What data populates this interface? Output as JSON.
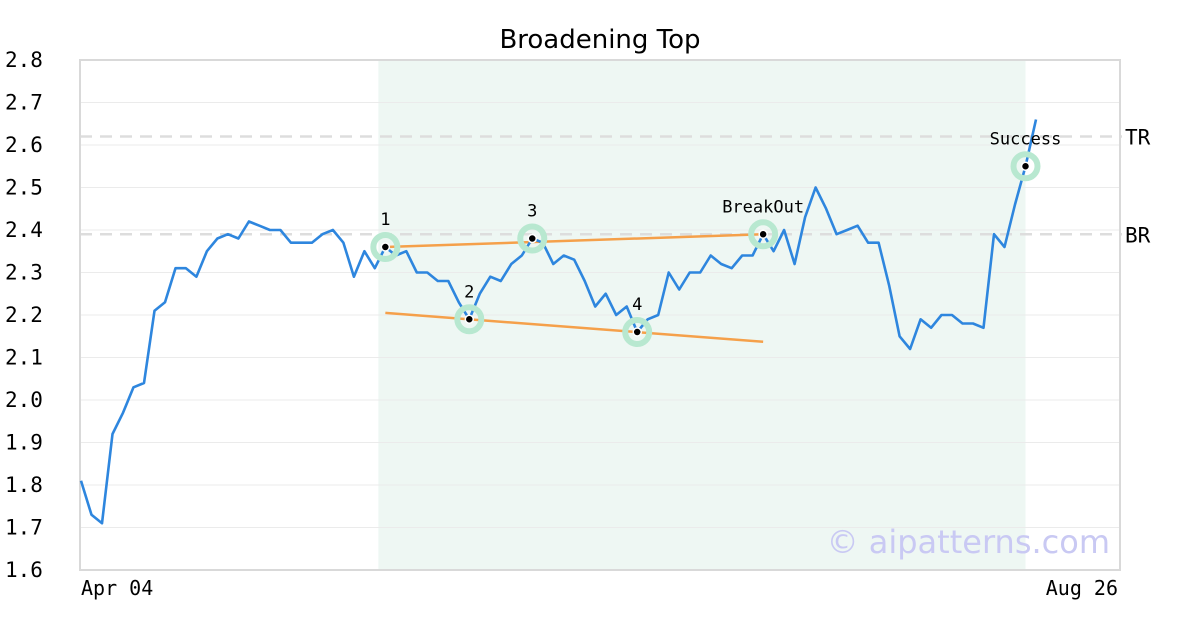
{
  "chart_data": {
    "type": "line",
    "title": "Broadening Top",
    "ylim": [
      1.6,
      2.8
    ],
    "yticks": [
      "1.6",
      "1.7",
      "1.8",
      "1.9",
      "2.0",
      "2.1",
      "2.2",
      "2.3",
      "2.4",
      "2.5",
      "2.6",
      "2.7",
      "2.8"
    ],
    "x_start_label": "Apr 04",
    "x_end_label": "Aug 26",
    "grid": true,
    "colors": {
      "price": "#2e86de",
      "trendline": "#f5a04a",
      "pattern_zone": "#eef7f3",
      "marker_halo": "#b8e8d0",
      "level_line": "#dddddd",
      "watermark": "#c9c9f3"
    },
    "series": [
      {
        "values": [
          1.81,
          1.73,
          1.71,
          1.92,
          1.97,
          2.03,
          2.04,
          2.21,
          2.23,
          2.31,
          2.31,
          2.29,
          2.35,
          2.38,
          2.39,
          2.38,
          2.42,
          2.41,
          2.4,
          2.4,
          2.37,
          2.37,
          2.37,
          2.39,
          2.4,
          2.37,
          2.29,
          2.35,
          2.31,
          2.36,
          2.34,
          2.35,
          2.3,
          2.3,
          2.28,
          2.28,
          2.23,
          2.19,
          2.25,
          2.29,
          2.28,
          2.32,
          2.34,
          2.38,
          2.37,
          2.32,
          2.34,
          2.33,
          2.28,
          2.22,
          2.25,
          2.2,
          2.22,
          2.16,
          2.19,
          2.2,
          2.3,
          2.26,
          2.3,
          2.3,
          2.34,
          2.32,
          2.31,
          2.34,
          2.34,
          2.39,
          2.35,
          2.4,
          2.32,
          2.43,
          2.5,
          2.45,
          2.39,
          2.4,
          2.41,
          2.37,
          2.37,
          2.27,
          2.15,
          2.12,
          2.19,
          2.17,
          2.2,
          2.2,
          2.18,
          2.18,
          2.17,
          2.39,
          2.36,
          2.46,
          2.55,
          2.66
        ]
      }
    ],
    "pattern_zone": {
      "start_index": 27,
      "end_index": 90
    },
    "levels": [
      {
        "label": "TR",
        "value": 2.62
      },
      {
        "label": "BR",
        "value": 2.39
      }
    ],
    "trendlines": [
      {
        "from": {
          "index": 29,
          "value": 2.36
        },
        "to": {
          "index": 65,
          "value": 2.39
        }
      },
      {
        "from": {
          "index": 29,
          "value": 2.205
        },
        "to": {
          "index": 65,
          "value": 2.137
        }
      }
    ],
    "points": [
      {
        "label": "1",
        "index": 29,
        "value": 2.36
      },
      {
        "label": "2",
        "index": 37,
        "value": 2.19
      },
      {
        "label": "3",
        "index": 43,
        "value": 2.38
      },
      {
        "label": "4",
        "index": 53,
        "value": 2.16
      },
      {
        "label": "BreakOut",
        "index": 65,
        "value": 2.39
      },
      {
        "label": "Success",
        "index": 90,
        "value": 2.55
      }
    ],
    "watermark": "© aipatterns.com"
  }
}
